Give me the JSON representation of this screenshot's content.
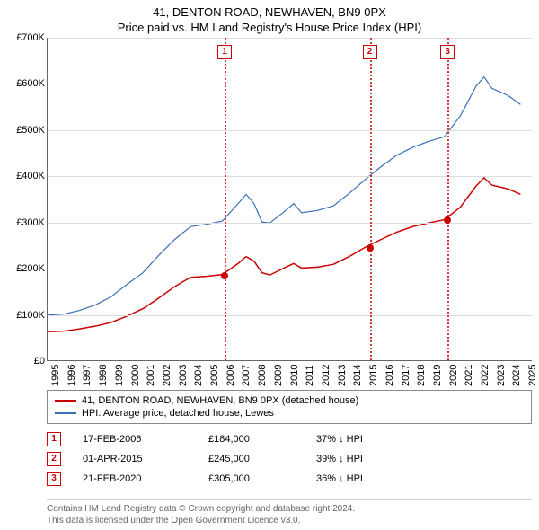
{
  "title_line1": "41, DENTON ROAD, NEWHAVEN, BN9 0PX",
  "title_line2": "Price paid vs. HM Land Registry's House Price Index (HPI)",
  "chart": {
    "type": "line",
    "background_color": "#ffffff",
    "grid_color": "#dddddd",
    "axis_color": "#666666",
    "x_years": [
      1995,
      1996,
      1997,
      1998,
      1999,
      2000,
      2001,
      2002,
      2003,
      2004,
      2005,
      2006,
      2007,
      2008,
      2009,
      2010,
      2011,
      2012,
      2013,
      2014,
      2015,
      2016,
      2017,
      2018,
      2019,
      2020,
      2021,
      2022,
      2023,
      2024,
      2025
    ],
    "x_min": 1995,
    "x_max": 2025.5,
    "ylim": [
      0,
      700000
    ],
    "ytick_step": 100000,
    "y_labels": [
      "£0",
      "£100K",
      "£200K",
      "£300K",
      "£400K",
      "£500K",
      "£600K",
      "£700K"
    ],
    "series": [
      {
        "name": "41, DENTON ROAD, NEWHAVEN, BN9 0PX (detached house)",
        "color": "#cc0000",
        "line_width": 1.5,
        "points": [
          [
            1995,
            62000
          ],
          [
            1996,
            63000
          ],
          [
            1997,
            68000
          ],
          [
            1998,
            74000
          ],
          [
            1999,
            82000
          ],
          [
            2000,
            96000
          ],
          [
            2001,
            112000
          ],
          [
            2002,
            135000
          ],
          [
            2003,
            160000
          ],
          [
            2004,
            180000
          ],
          [
            2005,
            182000
          ],
          [
            2006,
            186000
          ],
          [
            2007,
            210000
          ],
          [
            2007.5,
            225000
          ],
          [
            2008,
            215000
          ],
          [
            2008.5,
            190000
          ],
          [
            2009,
            185000
          ],
          [
            2010,
            202000
          ],
          [
            2010.5,
            210000
          ],
          [
            2011,
            200000
          ],
          [
            2012,
            202000
          ],
          [
            2013,
            208000
          ],
          [
            2014,
            225000
          ],
          [
            2015,
            245000
          ],
          [
            2016,
            262000
          ],
          [
            2017,
            278000
          ],
          [
            2018,
            290000
          ],
          [
            2019,
            298000
          ],
          [
            2020,
            305000
          ],
          [
            2021,
            332000
          ],
          [
            2022,
            378000
          ],
          [
            2022.5,
            396000
          ],
          [
            2023,
            380000
          ],
          [
            2024,
            372000
          ],
          [
            2024.8,
            360000
          ]
        ]
      },
      {
        "name": "HPI: Average price, detached house, Lewes",
        "color": "#3a6fb7",
        "line_width": 1.2,
        "points": [
          [
            1995,
            98000
          ],
          [
            1996,
            100000
          ],
          [
            1997,
            108000
          ],
          [
            1998,
            120000
          ],
          [
            1999,
            138000
          ],
          [
            2000,
            165000
          ],
          [
            2001,
            190000
          ],
          [
            2002,
            228000
          ],
          [
            2003,
            262000
          ],
          [
            2004,
            290000
          ],
          [
            2005,
            295000
          ],
          [
            2006,
            302000
          ],
          [
            2007,
            340000
          ],
          [
            2007.5,
            360000
          ],
          [
            2008,
            340000
          ],
          [
            2008.5,
            300000
          ],
          [
            2009,
            298000
          ],
          [
            2010,
            325000
          ],
          [
            2010.5,
            340000
          ],
          [
            2011,
            320000
          ],
          [
            2012,
            325000
          ],
          [
            2013,
            335000
          ],
          [
            2014,
            362000
          ],
          [
            2015,
            392000
          ],
          [
            2016,
            420000
          ],
          [
            2017,
            445000
          ],
          [
            2018,
            462000
          ],
          [
            2019,
            475000
          ],
          [
            2020,
            485000
          ],
          [
            2021,
            530000
          ],
          [
            2022,
            595000
          ],
          [
            2022.5,
            615000
          ],
          [
            2023,
            590000
          ],
          [
            2024,
            575000
          ],
          [
            2024.8,
            555000
          ]
        ]
      }
    ],
    "markers": [
      {
        "label": "1",
        "x": 2006.13,
        "price": 184000
      },
      {
        "label": "2",
        "x": 2015.25,
        "price": 245000
      },
      {
        "label": "3",
        "x": 2020.14,
        "price": 305000
      }
    ],
    "marker_line_color": "#d43a3a",
    "marker_dot_color": "#cc0000"
  },
  "legend": {
    "items": [
      {
        "color": "#cc0000",
        "label": "41, DENTON ROAD, NEWHAVEN, BN9 0PX (detached house)"
      },
      {
        "color": "#3a6fb7",
        "label": "HPI: Average price, detached house, Lewes"
      }
    ]
  },
  "transactions": [
    {
      "badge": "1",
      "date": "17-FEB-2006",
      "price": "£184,000",
      "pct": "37% ↓ HPI"
    },
    {
      "badge": "2",
      "date": "01-APR-2015",
      "price": "£245,000",
      "pct": "39% ↓ HPI"
    },
    {
      "badge": "3",
      "date": "21-FEB-2020",
      "price": "£305,000",
      "pct": "36% ↓ HPI"
    }
  ],
  "attribution_line1": "Contains HM Land Registry data © Crown copyright and database right 2024.",
  "attribution_line2": "This data is licensed under the Open Government Licence v3.0.",
  "colors": {
    "badge_border": "#cc0000",
    "badge_text": "#cc0000",
    "attribution_text": "#666666"
  },
  "font_sizes": {
    "title": 13,
    "axis_label": 11,
    "legend": 11,
    "footer": 11,
    "attribution": 10
  }
}
